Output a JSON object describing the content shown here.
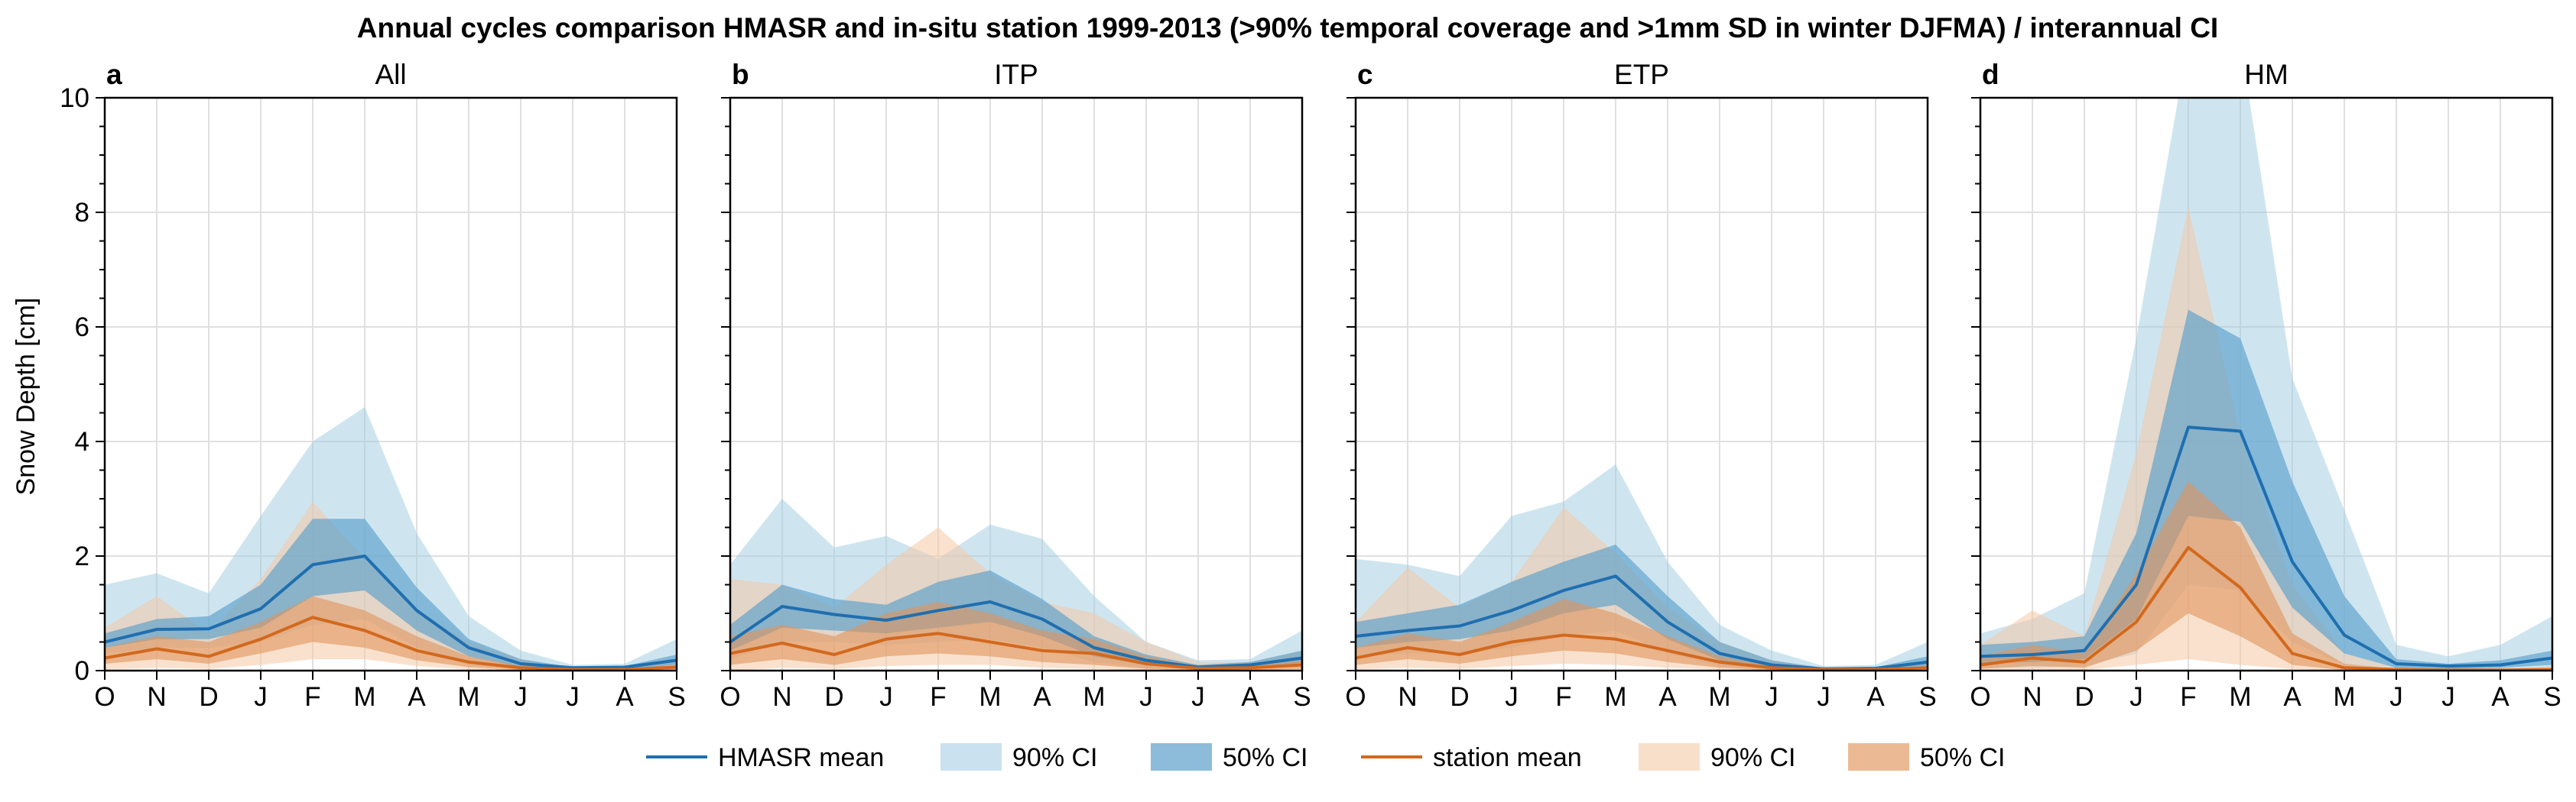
{
  "figure_title": "Annual cycles comparison HMASR and in-situ station 1999-2013 (>90% temporal coverage and >1mm SD in winter DJFMA) / interannual CI",
  "ylabel": "Snow Depth [cm]",
  "colors": {
    "hmasr": "#1f6fb0",
    "hmasr_ci90": "#9ecbe2",
    "hmasr_ci50": "#5b9fcb",
    "station": "#d2691e",
    "station_ci90": "#f4c9a6",
    "station_ci50": "#e0955c"
  },
  "legend": [
    {
      "label": "HMASR mean",
      "kind": "line",
      "color": "#1f6fb0"
    },
    {
      "label": "90% CI",
      "kind": "patch",
      "color": "#9ecbe2",
      "opacity": 0.55
    },
    {
      "label": "50% CI",
      "kind": "patch",
      "color": "#5b9fcb",
      "opacity": 0.7
    },
    {
      "label": "station mean",
      "kind": "line",
      "color": "#d2691e"
    },
    {
      "label": "90% CI",
      "kind": "patch",
      "color": "#f4c9a6",
      "opacity": 0.6
    },
    {
      "label": "50% CI",
      "kind": "patch",
      "color": "#e0955c",
      "opacity": 0.65
    }
  ],
  "chart_data": [
    {
      "type": "area",
      "panel_label": "a",
      "title": "All",
      "x": [
        "O",
        "N",
        "D",
        "J",
        "F",
        "M",
        "A",
        "M",
        "J",
        "J",
        "A",
        "S"
      ],
      "ylim": [
        0,
        10
      ],
      "yticks": [
        0,
        2,
        4,
        6,
        8,
        10
      ],
      "grid": true,
      "series": [
        {
          "name": "HMASR mean",
          "values": [
            0.5,
            0.72,
            0.73,
            1.08,
            1.85,
            2.0,
            1.05,
            0.4,
            0.12,
            0.05,
            0.06,
            0.18
          ],
          "ci90": {
            "lower": [
              0.3,
              0.4,
              0.4,
              0.5,
              0.8,
              0.9,
              0.4,
              0.1,
              0.03,
              0.02,
              0.02,
              0.05
            ],
            "upper": [
              1.5,
              1.7,
              1.35,
              2.7,
              4.0,
              4.6,
              2.4,
              0.95,
              0.35,
              0.1,
              0.12,
              0.55
            ]
          },
          "ci50": {
            "lower": [
              0.4,
              0.55,
              0.55,
              0.75,
              1.3,
              1.4,
              0.7,
              0.25,
              0.06,
              0.03,
              0.03,
              0.1
            ],
            "upper": [
              0.65,
              0.9,
              0.95,
              1.5,
              2.65,
              2.65,
              1.45,
              0.55,
              0.2,
              0.06,
              0.08,
              0.28
            ]
          }
        },
        {
          "name": "station mean",
          "values": [
            0.22,
            0.38,
            0.25,
            0.55,
            0.93,
            0.7,
            0.35,
            0.15,
            0.05,
            0.02,
            0.02,
            0.06
          ],
          "ci90": {
            "lower": [
              0.02,
              0.05,
              0.03,
              0.1,
              0.2,
              0.2,
              0.08,
              0.02,
              0.0,
              0.0,
              0.0,
              0.0
            ],
            "upper": [
              0.75,
              1.3,
              0.65,
              1.6,
              2.95,
              1.95,
              1.05,
              0.5,
              0.2,
              0.05,
              0.07,
              0.2
            ]
          },
          "ci50": {
            "lower": [
              0.12,
              0.2,
              0.12,
              0.3,
              0.5,
              0.4,
              0.18,
              0.06,
              0.01,
              0.0,
              0.0,
              0.02
            ],
            "upper": [
              0.4,
              0.6,
              0.5,
              0.85,
              1.3,
              1.05,
              0.6,
              0.25,
              0.08,
              0.03,
              0.03,
              0.1
            ]
          }
        }
      ]
    },
    {
      "type": "area",
      "panel_label": "b",
      "title": "ITP",
      "x": [
        "O",
        "N",
        "D",
        "J",
        "F",
        "M",
        "A",
        "M",
        "J",
        "J",
        "A",
        "S"
      ],
      "ylim": [
        0,
        10
      ],
      "yticks": [
        0,
        2,
        4,
        6,
        8,
        10
      ],
      "grid": true,
      "series": [
        {
          "name": "HMASR mean",
          "values": [
            0.5,
            1.12,
            0.98,
            0.88,
            1.05,
            1.2,
            0.9,
            0.4,
            0.18,
            0.06,
            0.1,
            0.22
          ],
          "ci90": {
            "lower": [
              0.2,
              0.5,
              0.5,
              0.45,
              0.5,
              0.55,
              0.4,
              0.15,
              0.05,
              0.02,
              0.03,
              0.08
            ],
            "upper": [
              1.85,
              3.0,
              2.15,
              2.35,
              1.95,
              2.55,
              2.3,
              1.3,
              0.5,
              0.18,
              0.2,
              0.7
            ]
          },
          "ci50": {
            "lower": [
              0.35,
              0.75,
              0.7,
              0.65,
              0.75,
              0.85,
              0.6,
              0.25,
              0.1,
              0.03,
              0.05,
              0.12
            ],
            "upper": [
              0.8,
              1.5,
              1.25,
              1.15,
              1.55,
              1.75,
              1.25,
              0.6,
              0.28,
              0.1,
              0.15,
              0.35
            ]
          }
        },
        {
          "name": "station mean",
          "values": [
            0.3,
            0.48,
            0.28,
            0.55,
            0.65,
            0.5,
            0.35,
            0.3,
            0.12,
            0.04,
            0.05,
            0.1
          ],
          "ci90": {
            "lower": [
              0.0,
              0.05,
              0.03,
              0.08,
              0.1,
              0.1,
              0.05,
              0.03,
              0.0,
              0.0,
              0.0,
              0.0
            ],
            "upper": [
              1.6,
              1.5,
              1.1,
              1.85,
              2.5,
              1.7,
              1.2,
              1.0,
              0.5,
              0.15,
              0.15,
              0.35
            ]
          },
          "ci50": {
            "lower": [
              0.1,
              0.2,
              0.1,
              0.25,
              0.3,
              0.25,
              0.15,
              0.1,
              0.03,
              0.01,
              0.01,
              0.03
            ],
            "upper": [
              0.6,
              0.8,
              0.6,
              1.0,
              1.2,
              1.0,
              0.7,
              0.55,
              0.25,
              0.08,
              0.08,
              0.18
            ]
          }
        }
      ]
    },
    {
      "type": "area",
      "panel_label": "c",
      "title": "ETP",
      "x": [
        "O",
        "N",
        "D",
        "J",
        "F",
        "M",
        "A",
        "M",
        "J",
        "J",
        "A",
        "S"
      ],
      "ylim": [
        0,
        10
      ],
      "yticks": [
        0,
        2,
        4,
        6,
        8,
        10
      ],
      "grid": true,
      "series": [
        {
          "name": "HMASR mean",
          "values": [
            0.6,
            0.7,
            0.78,
            1.05,
            1.4,
            1.65,
            0.85,
            0.3,
            0.1,
            0.03,
            0.04,
            0.15
          ],
          "ci90": {
            "lower": [
              0.25,
              0.3,
              0.3,
              0.4,
              0.6,
              0.7,
              0.3,
              0.08,
              0.02,
              0.01,
              0.01,
              0.03
            ],
            "upper": [
              1.95,
              1.85,
              1.65,
              2.7,
              2.95,
              3.6,
              1.9,
              0.8,
              0.35,
              0.08,
              0.1,
              0.5
            ]
          },
          "ci50": {
            "lower": [
              0.4,
              0.5,
              0.55,
              0.7,
              1.0,
              1.15,
              0.55,
              0.18,
              0.05,
              0.02,
              0.02,
              0.08
            ],
            "upper": [
              0.85,
              1.0,
              1.15,
              1.55,
              1.9,
              2.2,
              1.3,
              0.5,
              0.18,
              0.05,
              0.06,
              0.25
            ]
          }
        },
        {
          "name": "station mean",
          "values": [
            0.22,
            0.4,
            0.28,
            0.5,
            0.62,
            0.55,
            0.35,
            0.15,
            0.05,
            0.02,
            0.02,
            0.05
          ],
          "ci90": {
            "lower": [
              0.02,
              0.05,
              0.03,
              0.08,
              0.12,
              0.1,
              0.05,
              0.02,
              0.0,
              0.0,
              0.0,
              0.0
            ],
            "upper": [
              0.85,
              1.8,
              1.1,
              1.55,
              2.85,
              2.05,
              1.1,
              0.5,
              0.18,
              0.05,
              0.05,
              0.15
            ]
          },
          "ci50": {
            "lower": [
              0.1,
              0.2,
              0.12,
              0.25,
              0.35,
              0.3,
              0.15,
              0.05,
              0.01,
              0.0,
              0.0,
              0.02
            ],
            "upper": [
              0.4,
              0.65,
              0.5,
              0.85,
              1.25,
              1.0,
              0.6,
              0.25,
              0.08,
              0.03,
              0.03,
              0.08
            ]
          }
        }
      ]
    },
    {
      "type": "area",
      "panel_label": "d",
      "title": "HM",
      "x": [
        "O",
        "N",
        "D",
        "J",
        "F",
        "M",
        "A",
        "M",
        "J",
        "J",
        "A",
        "S"
      ],
      "ylim": [
        0,
        10
      ],
      "yticks": [
        0,
        2,
        4,
        6,
        8,
        10
      ],
      "grid": true,
      "series": [
        {
          "name": "HMASR mean",
          "values": [
            0.25,
            0.28,
            0.35,
            1.5,
            4.25,
            4.18,
            1.9,
            0.62,
            0.12,
            0.08,
            0.1,
            0.22
          ],
          "ci90": {
            "lower": [
              0.05,
              0.05,
              0.08,
              0.3,
              1.5,
              1.4,
              0.5,
              0.1,
              0.02,
              0.01,
              0.02,
              0.05
            ],
            "upper": [
              0.65,
              0.9,
              1.35,
              5.8,
              11.0,
              11.0,
              5.1,
              2.8,
              0.45,
              0.25,
              0.45,
              0.95
            ]
          },
          "ci50": {
            "lower": [
              0.12,
              0.15,
              0.2,
              0.9,
              2.7,
              2.6,
              1.1,
              0.3,
              0.05,
              0.03,
              0.05,
              0.1
            ],
            "upper": [
              0.45,
              0.5,
              0.6,
              2.4,
              6.3,
              5.8,
              3.3,
              1.3,
              0.2,
              0.12,
              0.18,
              0.35
            ]
          }
        },
        {
          "name": "station mean",
          "values": [
            0.1,
            0.22,
            0.15,
            0.85,
            2.15,
            1.45,
            0.3,
            0.05,
            0.02,
            0.01,
            0.01,
            0.02
          ],
          "ci90": {
            "lower": [
              0.0,
              0.02,
              0.01,
              0.1,
              0.2,
              0.1,
              0.03,
              0.0,
              0.0,
              0.0,
              0.0,
              0.0
            ],
            "upper": [
              0.45,
              1.05,
              0.6,
              3.8,
              8.1,
              4.1,
              1.5,
              0.3,
              0.05,
              0.02,
              0.02,
              0.08
            ]
          },
          "ci50": {
            "lower": [
              0.03,
              0.08,
              0.05,
              0.35,
              1.0,
              0.6,
              0.1,
              0.01,
              0.0,
              0.0,
              0.0,
              0.01
            ],
            "upper": [
              0.25,
              0.45,
              0.3,
              1.7,
              3.3,
              2.5,
              0.65,
              0.12,
              0.03,
              0.01,
              0.01,
              0.04
            ]
          }
        }
      ]
    }
  ]
}
